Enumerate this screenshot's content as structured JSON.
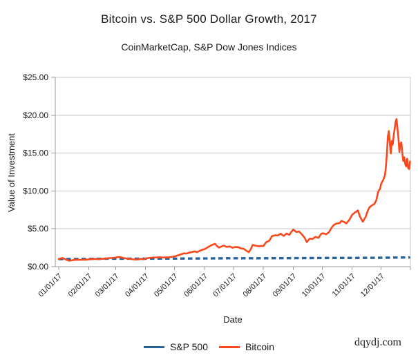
{
  "header": {
    "title": "Bitcoin vs. S&P 500 Dollar Growth, 2017",
    "subtitle": "CoinMarketCap, S&P Dow Jones Indices"
  },
  "watermark": "dqydj.com",
  "colors": {
    "bitcoin": "#fa481c",
    "sp500": "#27639b",
    "gridline": "#c6c6c6",
    "axis": "#9b9b9b",
    "text": "#1a1a1a"
  },
  "chart_data": {
    "type": "line",
    "title": "Bitcoin vs. S&P 500 Dollar Growth, 2017",
    "subtitle": "CoinMarketCap, S&P Dow Jones Indices",
    "xlabel": "Date",
    "ylabel": "Value of Investment",
    "x_unit": "day_of_year_2017",
    "xlim_days": [
      0,
      364
    ],
    "ylim": [
      0,
      25
    ],
    "grid": "horizontal",
    "legend_position": "bottom",
    "x_tick_days": [
      0,
      31,
      59,
      90,
      120,
      151,
      181,
      212,
      243,
      273,
      304,
      334
    ],
    "x_tick_labels": [
      "01/01/17",
      "02/01/17",
      "03/01/17",
      "04/01/17",
      "05/01/17",
      "06/01/17",
      "07/01/17",
      "08/01/17",
      "09/01/17",
      "10/01/17",
      "11/01/17",
      "12/01/17"
    ],
    "y_ticks": [
      0,
      5,
      10,
      15,
      20,
      25
    ],
    "y_tick_labels": [
      "$0.00",
      "$5.00",
      "$10.00",
      "$15.00",
      "$20.00",
      "$25.00"
    ],
    "series": [
      {
        "name": "S&P 500",
        "color": "#27639b",
        "style": "dashed",
        "points": [
          [
            0,
            1.0
          ],
          [
            14,
            1.01
          ],
          [
            31,
            1.02
          ],
          [
            45,
            1.05
          ],
          [
            59,
            1.06
          ],
          [
            75,
            1.06
          ],
          [
            90,
            1.06
          ],
          [
            105,
            1.07
          ],
          [
            120,
            1.07
          ],
          [
            135,
            1.08
          ],
          [
            151,
            1.09
          ],
          [
            166,
            1.1
          ],
          [
            181,
            1.11
          ],
          [
            196,
            1.11
          ],
          [
            212,
            1.11
          ],
          [
            227,
            1.12
          ],
          [
            243,
            1.13
          ],
          [
            258,
            1.14
          ],
          [
            273,
            1.15
          ],
          [
            288,
            1.16
          ],
          [
            304,
            1.16
          ],
          [
            319,
            1.17
          ],
          [
            334,
            1.18
          ],
          [
            349,
            1.2
          ],
          [
            364,
            1.21
          ]
        ]
      },
      {
        "name": "Bitcoin",
        "color": "#fa481c",
        "style": "solid",
        "points": [
          [
            0,
            1.0
          ],
          [
            2,
            1.09
          ],
          [
            4,
            1.15
          ],
          [
            6,
            1.02
          ],
          [
            8,
            0.91
          ],
          [
            11,
            0.78
          ],
          [
            13,
            0.83
          ],
          [
            16,
            0.89
          ],
          [
            19,
            0.92
          ],
          [
            22,
            0.9
          ],
          [
            25,
            0.92
          ],
          [
            28,
            0.92
          ],
          [
            31,
            0.97
          ],
          [
            34,
            1.01
          ],
          [
            37,
            1.02
          ],
          [
            40,
            0.99
          ],
          [
            43,
            1.01
          ],
          [
            46,
            1.04
          ],
          [
            49,
            1.07
          ],
          [
            52,
            1.13
          ],
          [
            55,
            1.15
          ],
          [
            58,
            1.19
          ],
          [
            60,
            1.23
          ],
          [
            62,
            1.28
          ],
          [
            64,
            1.26
          ],
          [
            66,
            1.19
          ],
          [
            68,
            1.12
          ],
          [
            71,
            1.05
          ],
          [
            74,
            1.04
          ],
          [
            77,
            0.97
          ],
          [
            80,
            0.94
          ],
          [
            83,
            0.97
          ],
          [
            85,
            1.03
          ],
          [
            88,
            0.97
          ],
          [
            90,
            1.08
          ],
          [
            93,
            1.14
          ],
          [
            96,
            1.19
          ],
          [
            99,
            1.21
          ],
          [
            102,
            1.22
          ],
          [
            105,
            1.24
          ],
          [
            108,
            1.2
          ],
          [
            111,
            1.22
          ],
          [
            114,
            1.24
          ],
          [
            117,
            1.28
          ],
          [
            119,
            1.34
          ],
          [
            121,
            1.39
          ],
          [
            124,
            1.51
          ],
          [
            127,
            1.64
          ],
          [
            130,
            1.77
          ],
          [
            132,
            1.72
          ],
          [
            135,
            1.83
          ],
          [
            138,
            1.94
          ],
          [
            141,
            2.03
          ],
          [
            143,
            1.91
          ],
          [
            146,
            2.08
          ],
          [
            149,
            2.25
          ],
          [
            151,
            2.3
          ],
          [
            153,
            2.45
          ],
          [
            156,
            2.68
          ],
          [
            159,
            2.88
          ],
          [
            162,
            3.01
          ],
          [
            164,
            2.72
          ],
          [
            166,
            2.52
          ],
          [
            169,
            2.68
          ],
          [
            171,
            2.78
          ],
          [
            174,
            2.6
          ],
          [
            177,
            2.67
          ],
          [
            180,
            2.5
          ],
          [
            183,
            2.61
          ],
          [
            186,
            2.56
          ],
          [
            189,
            2.42
          ],
          [
            192,
            2.34
          ],
          [
            195,
            2.05
          ],
          [
            197,
            1.92
          ],
          [
            199,
            2.33
          ],
          [
            201,
            2.88
          ],
          [
            204,
            2.77
          ],
          [
            207,
            2.7
          ],
          [
            210,
            2.75
          ],
          [
            212,
            2.72
          ],
          [
            215,
            3.25
          ],
          [
            218,
            3.4
          ],
          [
            221,
            4.03
          ],
          [
            224,
            4.14
          ],
          [
            227,
            4.12
          ],
          [
            230,
            4.35
          ],
          [
            233,
            4.06
          ],
          [
            236,
            4.37
          ],
          [
            239,
            4.2
          ],
          [
            241,
            4.61
          ],
          [
            243,
            4.89
          ],
          [
            246,
            4.58
          ],
          [
            249,
            4.64
          ],
          [
            252,
            4.25
          ],
          [
            255,
            3.79
          ],
          [
            257,
            3.25
          ],
          [
            260,
            3.69
          ],
          [
            263,
            3.66
          ],
          [
            266,
            3.94
          ],
          [
            269,
            3.8
          ],
          [
            272,
            4.35
          ],
          [
            274,
            4.41
          ],
          [
            277,
            4.27
          ],
          [
            280,
            4.56
          ],
          [
            283,
            5.2
          ],
          [
            285,
            5.49
          ],
          [
            288,
            5.71
          ],
          [
            291,
            5.75
          ],
          [
            293,
            6.05
          ],
          [
            296,
            5.88
          ],
          [
            298,
            5.71
          ],
          [
            301,
            6.18
          ],
          [
            304,
            6.85
          ],
          [
            307,
            7.16
          ],
          [
            310,
            7.43
          ],
          [
            312,
            6.63
          ],
          [
            315,
            5.94
          ],
          [
            318,
            6.58
          ],
          [
            320,
            7.31
          ],
          [
            322,
            7.86
          ],
          [
            325,
            8.13
          ],
          [
            327,
            8.27
          ],
          [
            329,
            8.76
          ],
          [
            331,
            9.92
          ],
          [
            333,
            10.3
          ],
          [
            334,
            10.95
          ],
          [
            336,
            11.4
          ],
          [
            338,
            12.1
          ],
          [
            339,
            13.25
          ],
          [
            340,
            14.95
          ],
          [
            341,
            17.2
          ],
          [
            342,
            17.92
          ],
          [
            343,
            16.3
          ],
          [
            344,
            14.95
          ],
          [
            345,
            16.6
          ],
          [
            346,
            16.1
          ],
          [
            347,
            17.3
          ],
          [
            348,
            18.1
          ],
          [
            349,
            19.05
          ],
          [
            350,
            19.5
          ],
          [
            351,
            18.25
          ],
          [
            352,
            16.95
          ],
          [
            353,
            15.15
          ],
          [
            354,
            16.25
          ],
          [
            355,
            16.4
          ],
          [
            356,
            15.05
          ],
          [
            357,
            13.95
          ],
          [
            358,
            14.45
          ],
          [
            359,
            13.55
          ],
          [
            360,
            13.25
          ],
          [
            361,
            14.25
          ],
          [
            362,
            13.05
          ],
          [
            363,
            12.9
          ],
          [
            364,
            13.9
          ]
        ]
      }
    ]
  }
}
